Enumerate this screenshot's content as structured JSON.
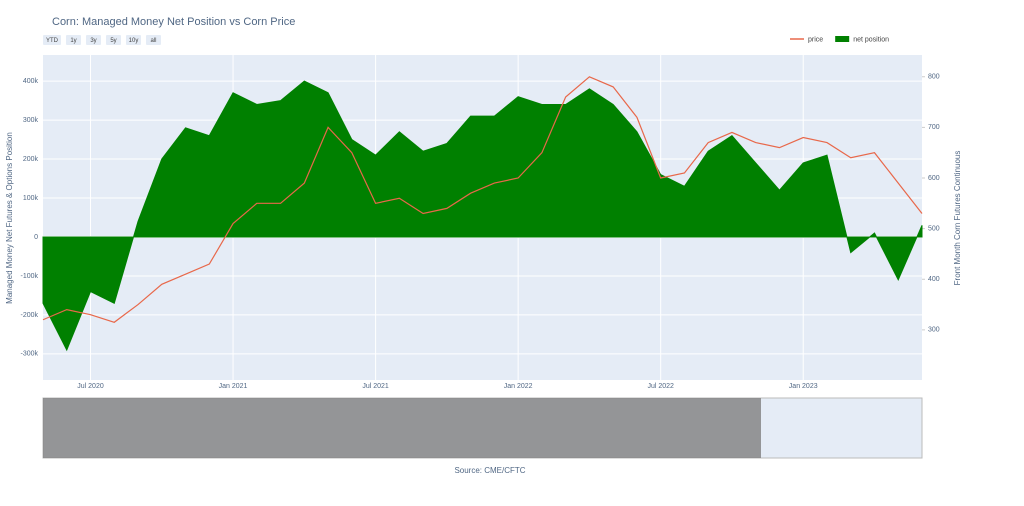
{
  "chart_data": {
    "type": "area_line",
    "title": "Corn: Managed Money Net Position vs Corn Price",
    "buttons": [
      "YTD",
      "1y",
      "3y",
      "5y",
      "10y",
      "all"
    ],
    "y_label": "Managed Money Net Futures & Options Position",
    "y2_label": "Front Month Corn Futures Continuous",
    "source": "Source: CME/CFTC",
    "x": [
      "2020-05",
      "2020-06",
      "2020-07",
      "2020-08",
      "2020-09",
      "2020-10",
      "2020-11",
      "2020-12",
      "2021-01",
      "2021-02",
      "2021-03",
      "2021-04",
      "2021-05",
      "2021-06",
      "2021-07",
      "2021-08",
      "2021-09",
      "2021-10",
      "2021-11",
      "2021-12",
      "2022-01",
      "2022-02",
      "2022-03",
      "2022-04",
      "2022-05",
      "2022-06",
      "2022-07",
      "2022-08",
      "2022-09",
      "2022-10",
      "2022-11",
      "2022-12",
      "2023-01",
      "2023-02",
      "2023-03",
      "2023-04",
      "2023-05",
      "2023-06"
    ],
    "series": [
      {
        "name": "price",
        "color": "#e8684a",
        "axis": "y2",
        "values": [
          320,
          340,
          330,
          315,
          350,
          390,
          410,
          430,
          510,
          550,
          550,
          590,
          700,
          650,
          550,
          560,
          530,
          540,
          570,
          590,
          600,
          650,
          760,
          800,
          780,
          720,
          600,
          610,
          670,
          690,
          670,
          660,
          680,
          670,
          640,
          650,
          590,
          530
        ]
      },
      {
        "name": "net position",
        "color": "#008000",
        "values": [
          -170000,
          -290000,
          -140000,
          -170000,
          40000,
          200000,
          280000,
          260000,
          370000,
          340000,
          350000,
          400000,
          370000,
          250000,
          210000,
          270000,
          220000,
          240000,
          310000,
          310000,
          360000,
          340000,
          340000,
          380000,
          340000,
          270000,
          160000,
          130000,
          220000,
          260000,
          190000,
          120000,
          190000,
          210000,
          -40000,
          10000,
          -110000,
          30000
        ]
      }
    ],
    "xlim": [
      "2020-05",
      "2023-06"
    ],
    "xticks": [
      {
        "value": "2020-07",
        "label": "Jul 2020"
      },
      {
        "value": "2021-01",
        "label": "Jan 2021"
      },
      {
        "value": "2021-07",
        "label": "Jul 2021"
      },
      {
        "value": "2022-01",
        "label": "Jan 2022"
      },
      {
        "value": "2022-07",
        "label": "Jul 2022"
      },
      {
        "value": "2023-01",
        "label": "Jan 2023"
      }
    ],
    "ylim": [
      -367000,
      467000
    ],
    "yticks": [
      {
        "value": -300000,
        "label": "-300k"
      },
      {
        "value": -200000,
        "label": "-200k"
      },
      {
        "value": -100000,
        "label": "-100k"
      },
      0,
      {
        "value": 100000,
        "label": "100k"
      },
      {
        "value": 200000,
        "label": "200k"
      },
      {
        "value": 300000,
        "label": "300k"
      },
      {
        "value": 400000,
        "label": "400k"
      }
    ],
    "y2lim": [
      201,
      843
    ],
    "y2ticks": [
      300,
      400,
      500,
      600,
      700,
      800
    ],
    "grid": true
  }
}
